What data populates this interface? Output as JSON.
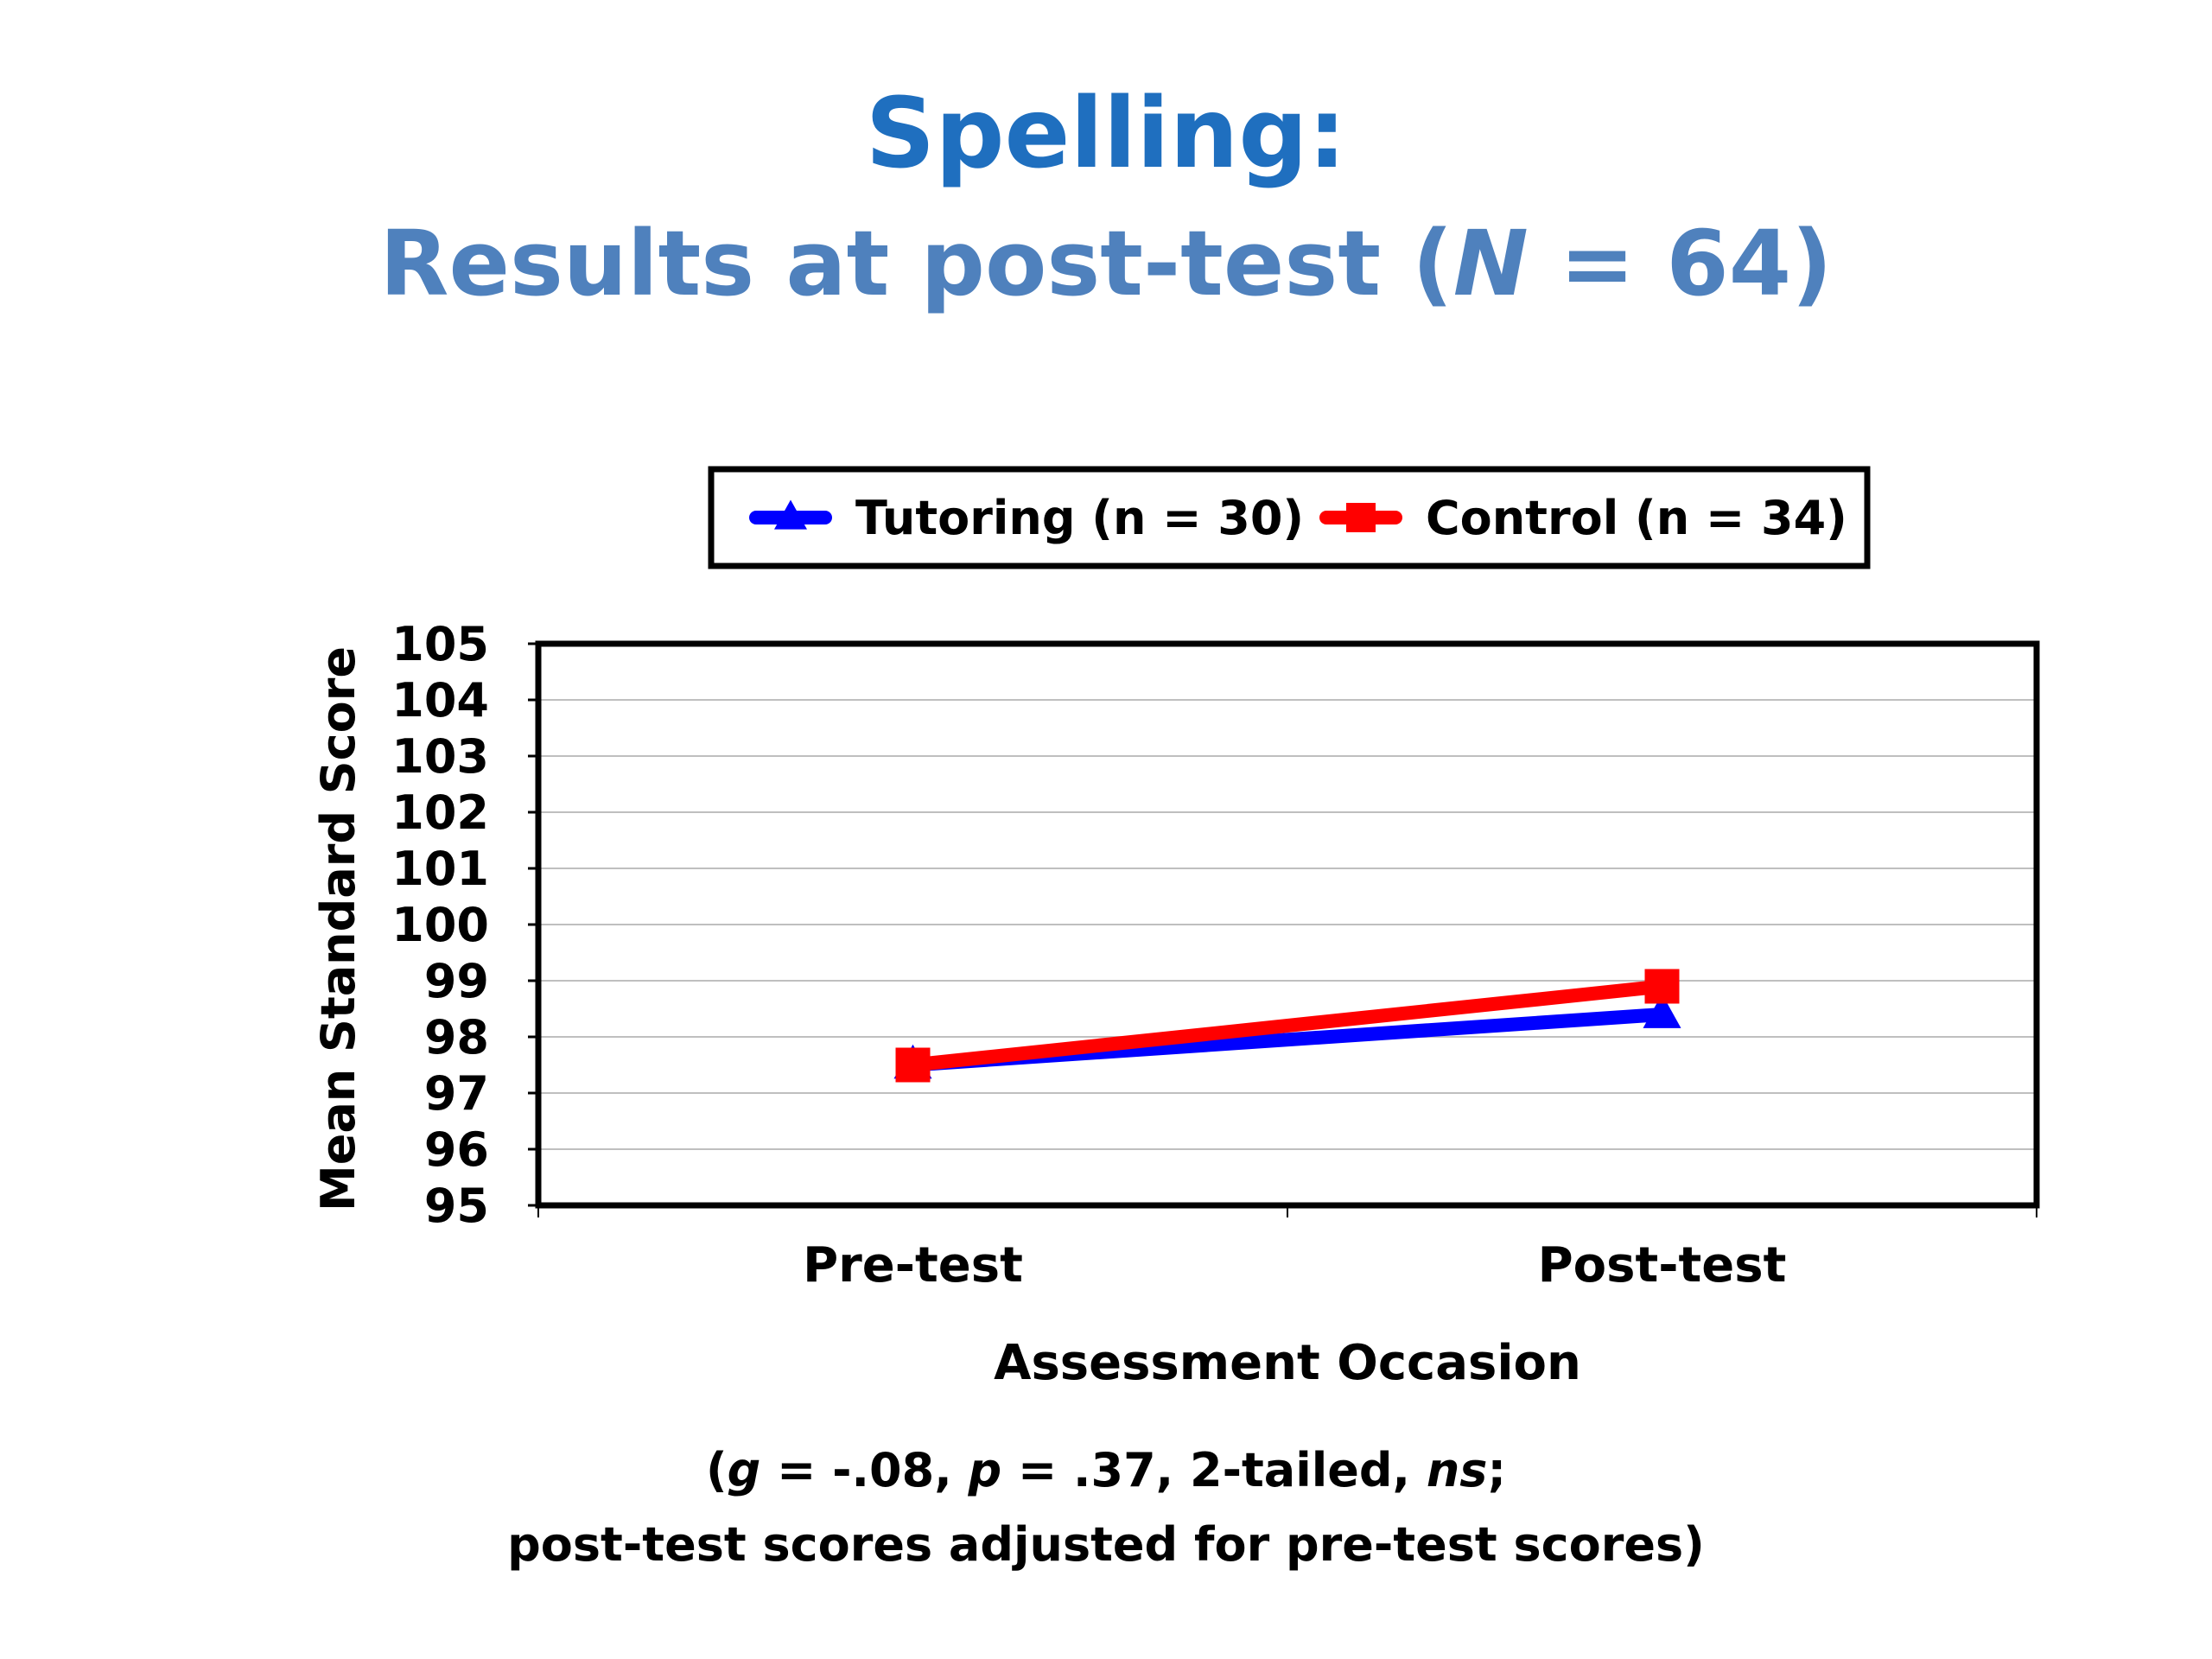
{
  "title": {
    "line1": "Spelling:",
    "line2_prefix": "Results at post-test (",
    "line2_italic": "N",
    "line2_suffix": " = 64)"
  },
  "colors": {
    "title1": "#1f6fbf",
    "title2": "#4f81bd",
    "tutoring": "#0000ff",
    "control": "#ff0000",
    "grid": "#bfbfbf"
  },
  "chart_data": {
    "type": "line",
    "categories": [
      "Pre-test",
      "Post-test"
    ],
    "series": [
      {
        "name": "Tutoring (n = 30)",
        "values": [
          97.5,
          98.4
        ],
        "color": "#0000ff",
        "marker": "triangle"
      },
      {
        "name": "Control (n = 34)",
        "values": [
          97.5,
          98.9
        ],
        "color": "#ff0000",
        "marker": "square"
      }
    ],
    "xlabel": "Assessment Occasion",
    "ylabel": "Mean Standard Score",
    "ylim": [
      95,
      105
    ],
    "yticks": [
      95,
      96,
      97,
      98,
      99,
      100,
      101,
      102,
      103,
      104,
      105
    ],
    "grid": true,
    "legend_position": "top"
  },
  "note": {
    "line1_parts": [
      {
        "text": "(",
        "italic": false
      },
      {
        "text": "g",
        "italic": true
      },
      {
        "text": " = -.08, ",
        "italic": false
      },
      {
        "text": "p",
        "italic": true
      },
      {
        "text": " = .37, 2-tailed, ",
        "italic": false
      },
      {
        "text": "ns",
        "italic": true
      },
      {
        "text": ";",
        "italic": false
      }
    ],
    "line2": "post-test scores adjusted for pre-test scores)"
  }
}
